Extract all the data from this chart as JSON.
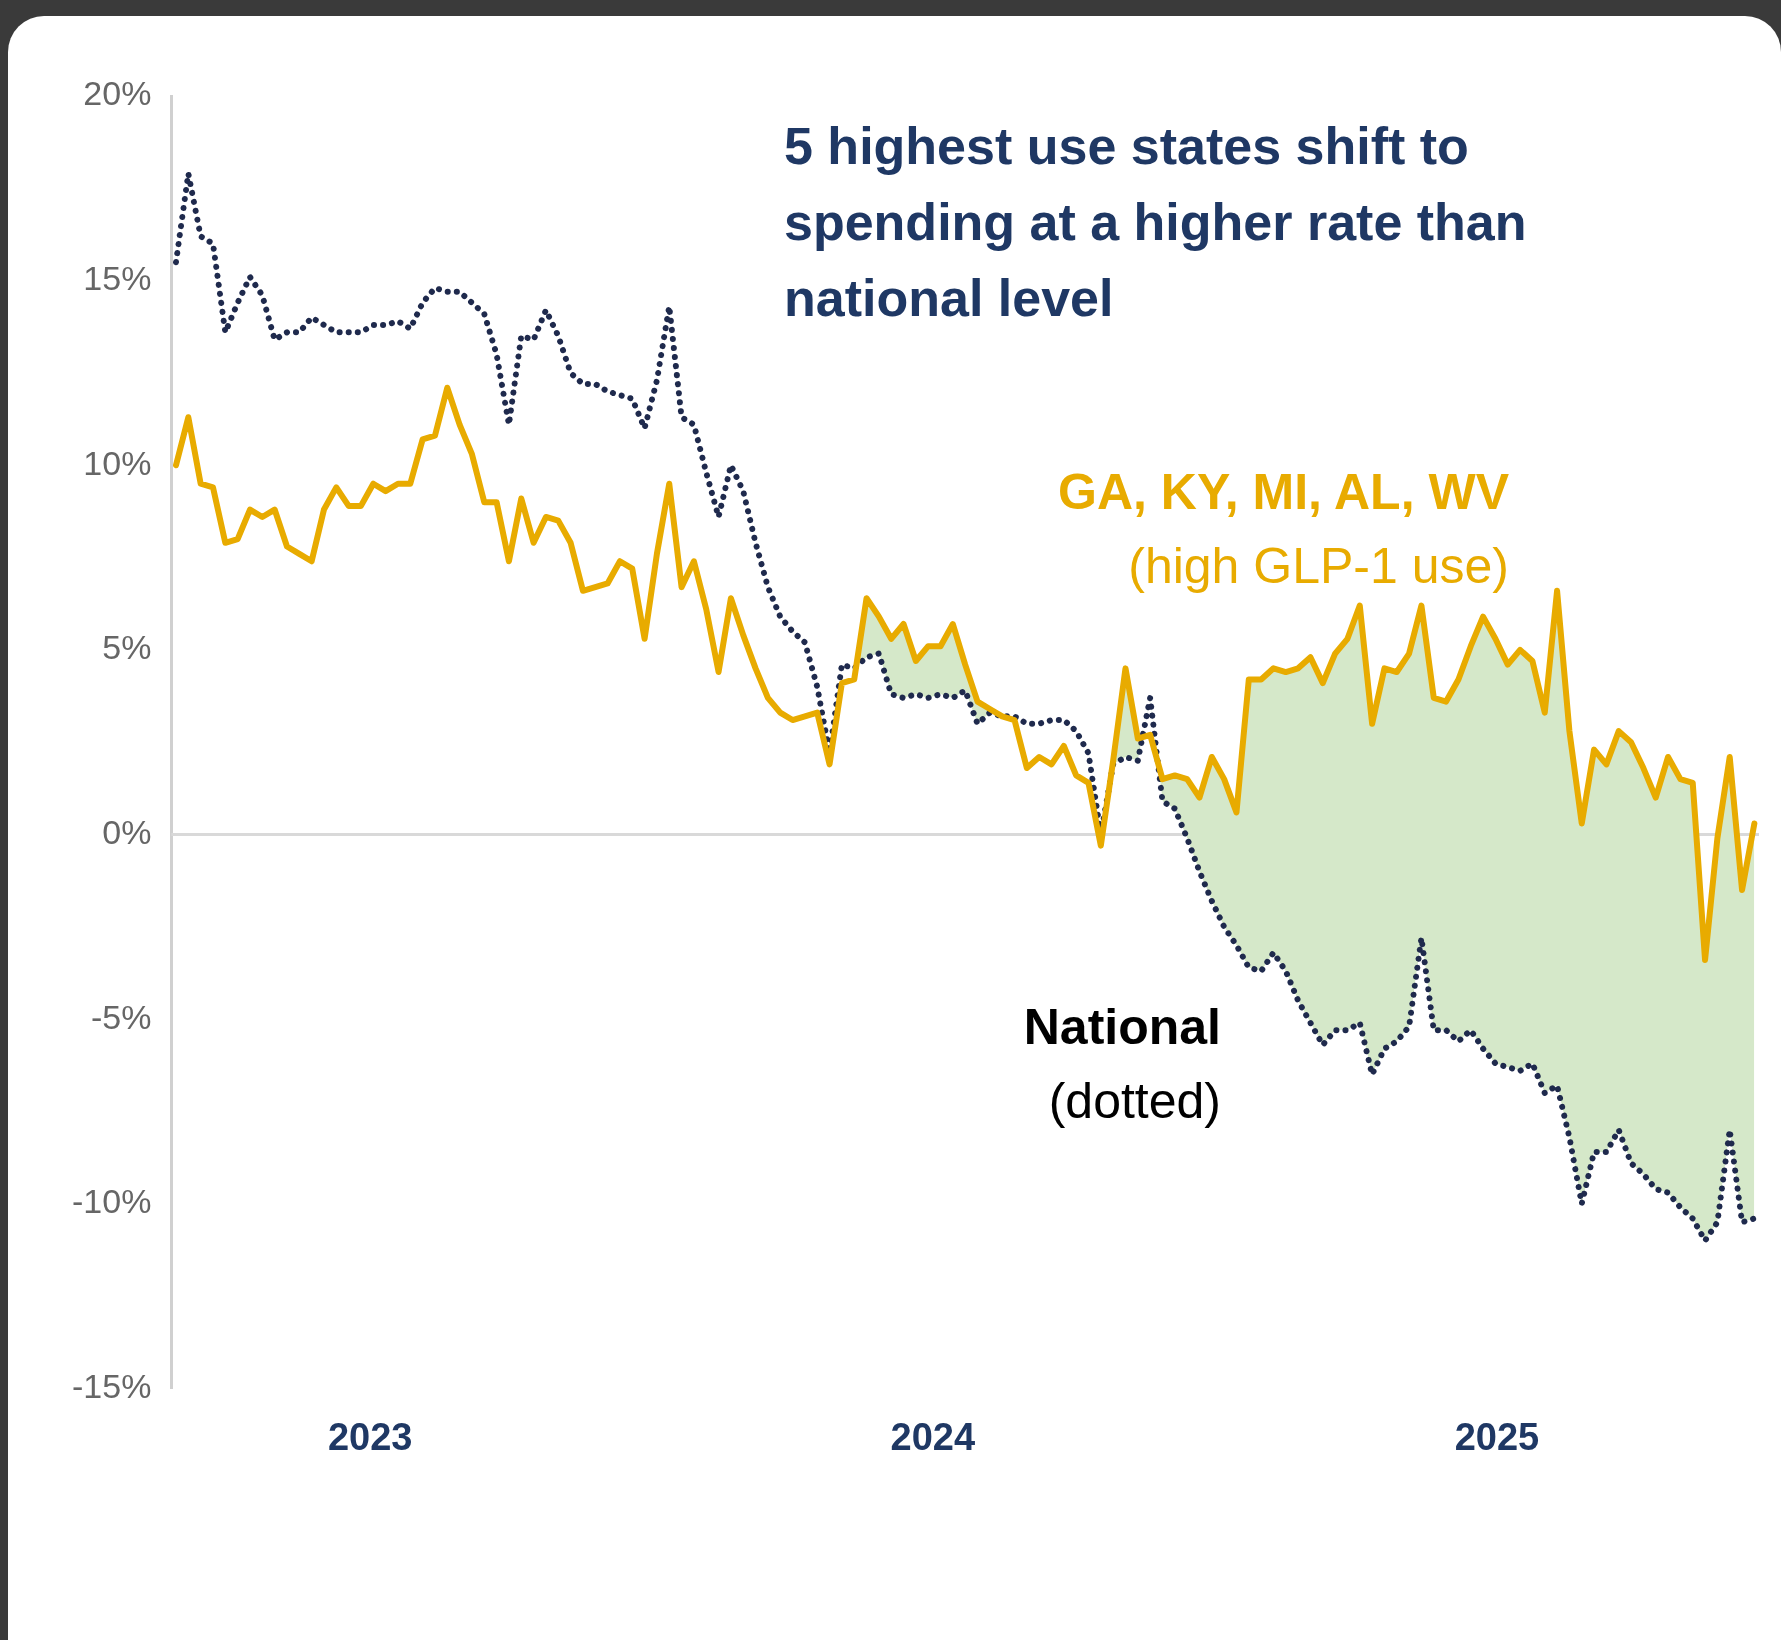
{
  "chart_data": {
    "type": "line",
    "title": "5 highest use states shift to spending at a higher rate than national level",
    "x": [
      "2022-08-28",
      "2022-09-05",
      "2022-09-13",
      "2022-09-21",
      "2022-09-29",
      "2022-10-07",
      "2022-10-15",
      "2022-10-23",
      "2022-10-31",
      "2022-11-08",
      "2022-11-16",
      "2022-11-24",
      "2022-12-02",
      "2022-12-10",
      "2022-12-18",
      "2022-12-26",
      "2023-01-03",
      "2023-01-11",
      "2023-01-19",
      "2023-01-27",
      "2023-02-04",
      "2023-02-12",
      "2023-02-20",
      "2023-02-28",
      "2023-03-08",
      "2023-03-16",
      "2023-03-24",
      "2023-04-01",
      "2023-04-09",
      "2023-04-17",
      "2023-04-25",
      "2023-05-03",
      "2023-05-11",
      "2023-05-19",
      "2023-05-27",
      "2023-06-04",
      "2023-06-12",
      "2023-06-20",
      "2023-06-28",
      "2023-07-06",
      "2023-07-14",
      "2023-07-22",
      "2023-07-30",
      "2023-08-07",
      "2023-08-15",
      "2023-08-23",
      "2023-08-31",
      "2023-09-08",
      "2023-09-16",
      "2023-09-24",
      "2023-10-02",
      "2023-10-10",
      "2023-10-18",
      "2023-10-26",
      "2023-11-03",
      "2023-11-11",
      "2023-11-19",
      "2023-11-27",
      "2023-12-05",
      "2023-12-13",
      "2023-12-21",
      "2023-12-29",
      "2024-01-06",
      "2024-01-14",
      "2024-01-22",
      "2024-01-30",
      "2024-02-07",
      "2024-02-15",
      "2024-02-23",
      "2024-03-02",
      "2024-03-10",
      "2024-03-18",
      "2024-03-26",
      "2024-04-03",
      "2024-04-11",
      "2024-04-19",
      "2024-04-27",
      "2024-05-05",
      "2024-05-13",
      "2024-05-21",
      "2024-05-29",
      "2024-06-06",
      "2024-06-14",
      "2024-06-22",
      "2024-06-30",
      "2024-07-08",
      "2024-07-16",
      "2024-07-24",
      "2024-08-01",
      "2024-08-09",
      "2024-08-17",
      "2024-08-25",
      "2024-09-02",
      "2024-09-10",
      "2024-09-18",
      "2024-09-26",
      "2024-10-04",
      "2024-10-12",
      "2024-10-20",
      "2024-10-28",
      "2024-11-05",
      "2024-11-13",
      "2024-11-21",
      "2024-11-29",
      "2024-12-07",
      "2024-12-15",
      "2024-12-23",
      "2024-12-31",
      "2025-01-08",
      "2025-01-16",
      "2025-01-24",
      "2025-02-01",
      "2025-02-09",
      "2025-02-17",
      "2025-02-25",
      "2025-03-05",
      "2025-03-13",
      "2025-03-21",
      "2025-03-29",
      "2025-04-06",
      "2025-04-14",
      "2025-04-22",
      "2025-04-30",
      "2025-05-08",
      "2025-05-16",
      "2025-05-24",
      "2025-06-01",
      "2025-06-09",
      "2025-06-17"
    ],
    "series": [
      {
        "name": "GA, KY, MI, AL, WV",
        "color": "#e8ab00",
        "line_style": "solid",
        "values": [
          10.0,
          11.3,
          9.5,
          9.4,
          7.9,
          8.0,
          8.8,
          8.6,
          8.8,
          7.8,
          7.6,
          7.4,
          8.8,
          9.4,
          8.9,
          8.9,
          9.5,
          9.3,
          9.5,
          9.5,
          10.7,
          10.8,
          12.1,
          11.1,
          10.3,
          9.0,
          9.0,
          7.4,
          9.1,
          7.9,
          8.6,
          8.5,
          7.9,
          6.6,
          6.7,
          6.8,
          7.4,
          7.2,
          5.3,
          7.6,
          9.5,
          6.7,
          7.4,
          6.1,
          4.4,
          6.4,
          5.4,
          4.5,
          3.7,
          3.3,
          3.1,
          3.2,
          3.3,
          1.9,
          4.1,
          4.2,
          6.4,
          5.9,
          5.3,
          5.7,
          4.7,
          5.1,
          5.1,
          5.7,
          4.6,
          3.6,
          3.4,
          3.2,
          3.1,
          1.8,
          2.1,
          1.9,
          2.4,
          1.6,
          1.4,
          -0.3,
          2.0,
          4.5,
          2.6,
          2.7,
          1.5,
          1.6,
          1.5,
          1.0,
          2.1,
          1.5,
          0.6,
          4.2,
          4.2,
          4.5,
          4.4,
          4.5,
          4.8,
          4.1,
          4.9,
          5.3,
          6.2,
          3.0,
          4.5,
          4.4,
          4.9,
          6.2,
          3.7,
          3.6,
          4.2,
          5.1,
          5.9,
          5.3,
          4.6,
          5.0,
          4.7,
          3.3,
          6.6,
          2.8,
          0.3,
          2.3,
          1.9,
          2.8,
          2.5,
          1.8,
          1.0,
          2.1,
          1.5,
          1.4,
          -3.4,
          -0.1,
          2.1,
          -1.5,
          0.3
        ],
        "lower": [
          null,
          null,
          null,
          null,
          null,
          null,
          null,
          null,
          null,
          null,
          null,
          null,
          null,
          null,
          null,
          null,
          null,
          null,
          null,
          null,
          null,
          null,
          null,
          null,
          null,
          null,
          null,
          null,
          null,
          null,
          null,
          null,
          null,
          null,
          null,
          null,
          null,
          null,
          null,
          null,
          null,
          null,
          null,
          null,
          null,
          null,
          null,
          null,
          null,
          null,
          null,
          null,
          null,
          null,
          null,
          4.5,
          4.8,
          4.9,
          3.8,
          3.7,
          3.8,
          3.7,
          3.8,
          3.7,
          3.9,
          3.0,
          3.3,
          3.2,
          3.2,
          null,
          null,
          null,
          null,
          null,
          null,
          0.0,
          1.9,
          2.1,
          2.0,
          3.7,
          0.9,
          0.7,
          -0.1,
          -1.0,
          -1.8,
          -2.5,
          -3.0,
          -3.6,
          -3.7,
          -3.2,
          -3.7,
          -4.5,
          -5.1,
          -5.7,
          -5.3,
          -5.3,
          -5.1,
          -6.5,
          -5.8,
          -5.6,
          -5.2,
          -2.8,
          -5.3,
          -5.3,
          -5.6,
          -5.3,
          -5.8,
          -6.2,
          -6.3,
          -6.4,
          -6.2,
          -7.0,
          -6.8,
          -8.2,
          -10.0,
          -8.6,
          -8.6,
          -8.0,
          -8.9,
          -9.2,
          -9.6,
          -9.7,
          -10.1,
          -10.4,
          -11.0,
          -10.5,
          -8.0,
          -10.5,
          -10.4
        ],
        "upper": [
          null,
          null,
          null,
          null,
          null,
          null,
          null,
          null,
          null,
          null,
          null,
          null,
          null,
          null,
          null,
          null,
          null,
          null,
          null,
          null,
          null,
          null,
          null,
          null,
          null,
          null,
          null,
          null,
          null,
          null,
          null,
          null,
          null,
          null,
          null,
          null,
          null,
          null,
          null,
          null,
          null,
          null,
          null,
          null,
          null,
          null,
          null,
          null,
          null,
          null,
          null,
          null,
          null,
          null,
          null,
          4.2,
          6.4,
          5.9,
          5.3,
          5.7,
          4.7,
          5.1,
          5.1,
          5.7,
          4.6,
          3.6,
          3.4,
          3.2,
          3.1,
          null,
          null,
          null,
          null,
          null,
          null,
          -0.3,
          2.0,
          4.5,
          2.6,
          2.7,
          1.5,
          1.6,
          1.5,
          1.0,
          2.1,
          1.5,
          0.6,
          4.2,
          4.2,
          4.5,
          4.4,
          4.5,
          4.8,
          4.1,
          4.9,
          5.3,
          6.2,
          3.0,
          4.5,
          4.4,
          4.9,
          6.2,
          3.7,
          3.6,
          4.2,
          5.1,
          5.9,
          5.3,
          4.6,
          5.0,
          4.7,
          3.3,
          6.6,
          2.8,
          0.3,
          2.3,
          1.9,
          2.8,
          2.5,
          1.8,
          1.0,
          2.1,
          1.5,
          1.4,
          -3.4,
          -0.1,
          2.1,
          -1.5,
          0.3
        ]
      },
      {
        "name": "National",
        "color": "#1f2a4d",
        "line_style": "dotted",
        "values": [
          15.5,
          17.9,
          16.2,
          16.0,
          13.6,
          14.4,
          15.1,
          14.6,
          13.4,
          13.6,
          13.6,
          14.0,
          13.8,
          13.6,
          13.6,
          13.6,
          13.8,
          13.8,
          13.9,
          13.7,
          14.4,
          14.8,
          14.7,
          14.7,
          14.4,
          14.1,
          13.0,
          11.1,
          13.5,
          13.4,
          14.2,
          13.5,
          12.5,
          12.2,
          12.2,
          12.0,
          11.9,
          11.8,
          11.0,
          12.3,
          14.3,
          11.3,
          11.1,
          9.8,
          8.6,
          10.0,
          9.3,
          7.9,
          6.7,
          5.9,
          5.5,
          5.2,
          4.0,
          2.2,
          4.6,
          4.5,
          4.8,
          4.9,
          3.8,
          3.7,
          3.8,
          3.7,
          3.8,
          3.7,
          3.9,
          3.0,
          3.3,
          3.2,
          3.2,
          3.0,
          3.0,
          3.1,
          3.1,
          2.8,
          2.2,
          0.0,
          1.9,
          2.1,
          2.0,
          3.7,
          0.9,
          0.7,
          -0.1,
          -1.0,
          -1.8,
          -2.5,
          -3.0,
          -3.6,
          -3.7,
          -3.2,
          -3.7,
          -4.5,
          -5.1,
          -5.7,
          -5.3,
          -5.3,
          -5.1,
          -6.5,
          -5.8,
          -5.6,
          -5.2,
          -2.8,
          -5.3,
          -5.3,
          -5.6,
          -5.3,
          -5.8,
          -6.2,
          -6.3,
          -6.4,
          -6.2,
          -7.0,
          -6.8,
          -8.2,
          -10.0,
          -8.6,
          -8.6,
          -8.0,
          -8.9,
          -9.2,
          -9.6,
          -9.7,
          -10.1,
          -10.4,
          -11.0,
          -10.5,
          -8.0,
          -10.5,
          -10.4
        ]
      }
    ],
    "annotations": [
      "(high GLP-1 use)",
      "(dotted)"
    ],
    "xlim": [
      "2022-08-25",
      "2025-06-20"
    ],
    "xticks": [
      {
        "value": "2023-01-01",
        "label": "2023"
      },
      {
        "value": "2024-01-01",
        "label": "2024"
      },
      {
        "value": "2025-01-01",
        "label": "2025"
      }
    ],
    "ylim": [
      -15,
      20
    ],
    "yticks": [
      {
        "value": -15,
        "label": "-15%"
      },
      {
        "value": -10,
        "label": "-10%"
      },
      {
        "value": -5,
        "label": "-5%"
      },
      {
        "value": 0,
        "label": "0%"
      },
      {
        "value": 5,
        "label": "5%"
      },
      {
        "value": 10,
        "label": "10%"
      },
      {
        "value": 15,
        "label": "15%"
      },
      {
        "value": 20,
        "label": "20%"
      }
    ],
    "ref_lines": [
      {
        "axis": "y",
        "value": 0,
        "color": "#d9d9d9"
      }
    ],
    "grid": false,
    "legend": false,
    "marker": "none"
  }
}
